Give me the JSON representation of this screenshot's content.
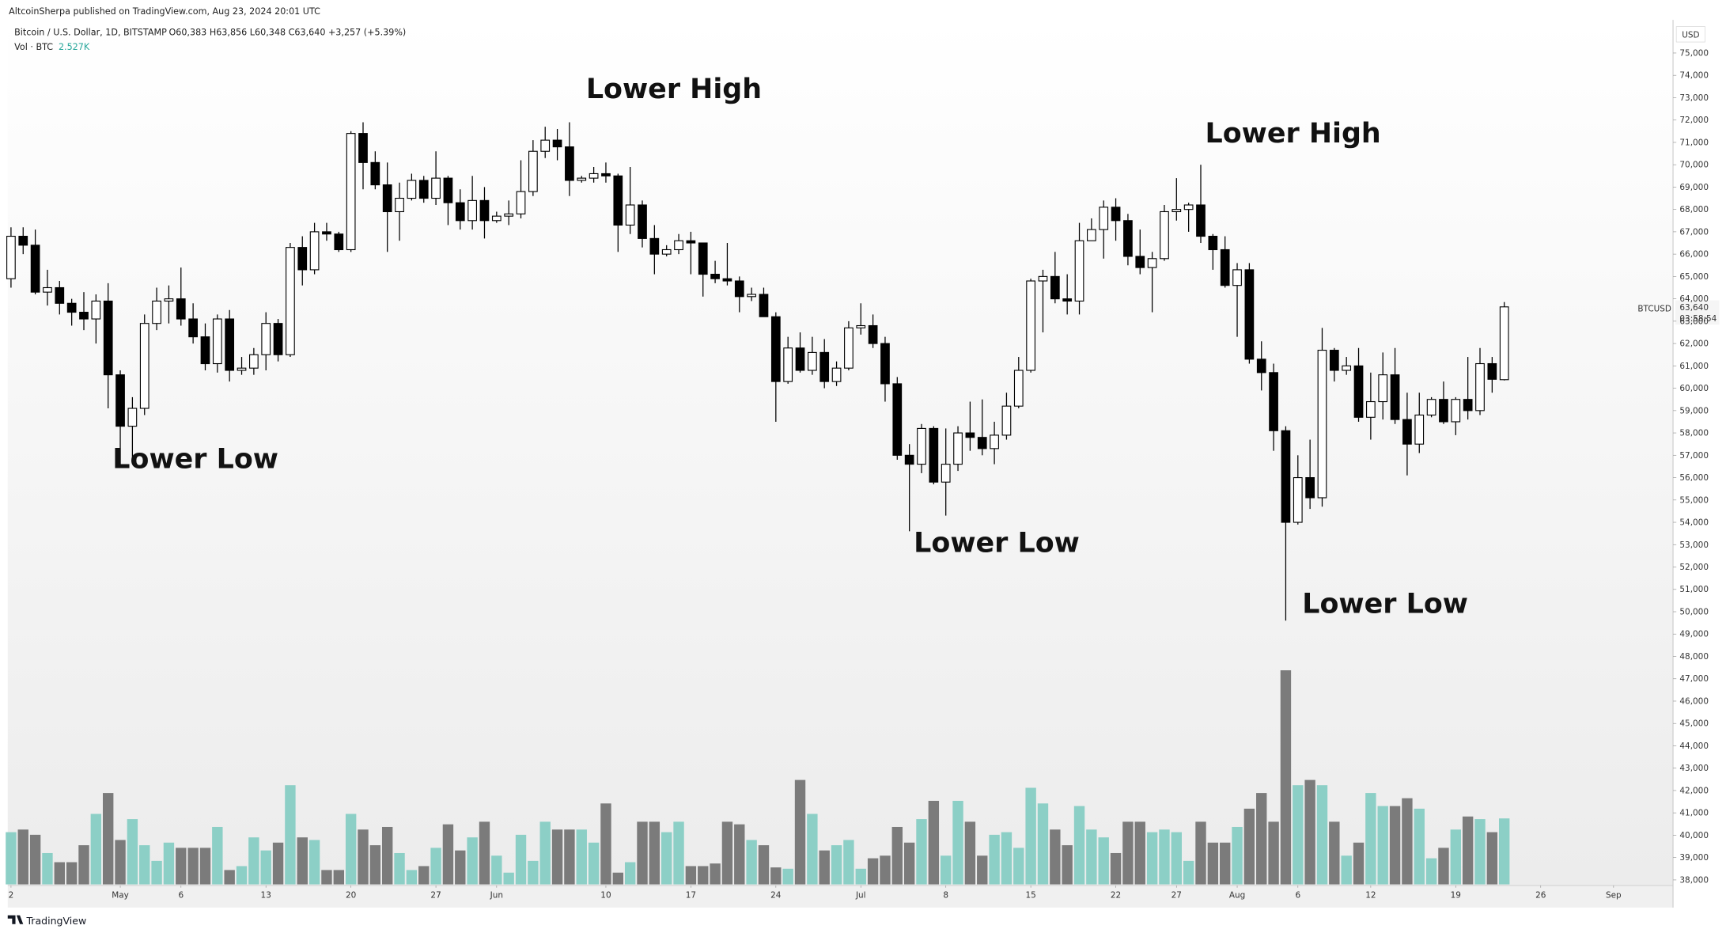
{
  "header": {
    "published": "AltcoinSherpa published on TradingView.com, Aug 23, 2024 20:01 UTC"
  },
  "footer": {
    "brand": "TradingView"
  },
  "chart_data": {
    "type": "candlestick",
    "title": "Bitcoin / U.S. Dollar, 1D, BITSTAMP",
    "readout": "O60,383  H63,856  L60,348  C63,640  +3,257 (+5.39%)",
    "currency": "USD",
    "symbol": "BTCUSD",
    "last_close_label": "63,640",
    "countdown": "03:58:54",
    "up_color": "#ffffff",
    "down_color": "#000000",
    "annotations": [
      "Lower High",
      "Lower High",
      "Lower Low",
      "Lower Low",
      "Lower Low"
    ],
    "open": [
      64900,
      66800,
      66400,
      64300,
      64500,
      63800,
      63400,
      63100,
      63900,
      60600,
      58300,
      59100,
      62900,
      63900,
      64000,
      63100,
      62300,
      61100,
      63100,
      60800,
      60900,
      61500,
      62900,
      61500,
      66300,
      65300,
      67000,
      66900,
      66200,
      71400,
      70100,
      69100,
      67900,
      68500,
      69300,
      68500,
      69400,
      68300,
      67500,
      68400,
      67500,
      67700,
      67800,
      68800,
      70600,
      71100,
      70800,
      69300,
      69400,
      69600,
      69500,
      67300,
      68200,
      66700,
      66000,
      66200,
      66600,
      66500,
      65100,
      64900,
      64800,
      64100,
      64200,
      63200,
      60300,
      61800,
      60800,
      61600,
      60300,
      60900,
      62700,
      62800,
      62000,
      60200,
      57000,
      56600,
      58200,
      55800,
      56600,
      58000,
      57800,
      57300,
      57900,
      59200,
      60800,
      64800,
      65000,
      64000,
      63900,
      66600,
      67100,
      68100,
      67500,
      65900,
      65400,
      65800,
      67900,
      68000,
      68200,
      66800,
      66200,
      64600,
      65300,
      61300,
      60700,
      58100,
      54000,
      56000,
      55100,
      61700,
      60800,
      61000,
      58700,
      59400,
      60600,
      58600,
      57500,
      58800,
      59500,
      58500,
      59500,
      59000,
      61100,
      60383
    ],
    "high": [
      67200,
      67200,
      67100,
      65300,
      64800,
      64000,
      64300,
      64200,
      64700,
      60800,
      59600,
      63300,
      64500,
      64600,
      65400,
      63800,
      62900,
      63300,
      63500,
      61400,
      61800,
      63400,
      63100,
      66500,
      66800,
      67400,
      67400,
      67000,
      71500,
      71900,
      70600,
      70100,
      69200,
      69600,
      69500,
      70600,
      69500,
      68900,
      69500,
      69000,
      67900,
      68400,
      70200,
      71100,
      71700,
      71600,
      71900,
      69500,
      69900,
      70100,
      69600,
      69900,
      68400,
      67300,
      66400,
      66900,
      67000,
      66500,
      65700,
      66500,
      65000,
      64500,
      64500,
      63400,
      62300,
      62500,
      62300,
      62200,
      61200,
      63000,
      63800,
      63300,
      62300,
      60500,
      57500,
      58400,
      58300,
      58200,
      58300,
      59400,
      59500,
      58500,
      59800,
      61400,
      64900,
      65300,
      66100,
      65100,
      67400,
      67600,
      68400,
      68500,
      67800,
      67100,
      66100,
      68200,
      69400,
      68300,
      70000,
      66900,
      66800,
      65600,
      65600,
      62100,
      61100,
      58300,
      57000,
      57700,
      62700,
      61800,
      61400,
      61800,
      60700,
      61600,
      61800,
      59800,
      59800,
      59600,
      60300,
      59600,
      61400,
      61800,
      61400,
      63856
    ],
    "low": [
      64500,
      66000,
      64200,
      63700,
      63300,
      62800,
      62600,
      62000,
      59100,
      56600,
      56900,
      58800,
      62600,
      62900,
      62800,
      62000,
      60800,
      60700,
      60300,
      60600,
      60600,
      60800,
      61200,
      61400,
      64600,
      65100,
      66600,
      66100,
      66100,
      68900,
      68900,
      66100,
      66600,
      68400,
      68300,
      68200,
      67300,
      67100,
      67100,
      66700,
      67400,
      67300,
      67600,
      68600,
      70300,
      70200,
      68600,
      69200,
      69200,
      69200,
      66100,
      66900,
      66300,
      65100,
      65900,
      66000,
      65100,
      64100,
      64700,
      64600,
      63400,
      63900,
      63200,
      58500,
      60200,
      60700,
      60600,
      60000,
      60100,
      60800,
      62400,
      61800,
      59400,
      56800,
      53600,
      56200,
      55700,
      54300,
      56300,
      57200,
      57000,
      56600,
      57700,
      59100,
      60700,
      62500,
      63800,
      63300,
      63300,
      66600,
      65800,
      66600,
      65500,
      65100,
      63400,
      65700,
      67500,
      67000,
      66500,
      65300,
      64500,
      62300,
      61100,
      59900,
      57200,
      49600,
      53900,
      54600,
      54700,
      60300,
      60600,
      58500,
      57700,
      58600,
      58400,
      56100,
      57100,
      58700,
      58400,
      57900,
      58600,
      58800,
      59800,
      60348
    ],
    "close": [
      66800,
      66400,
      64300,
      64500,
      63800,
      63400,
      63100,
      63900,
      60600,
      58300,
      59100,
      62900,
      63900,
      64000,
      63100,
      62300,
      61100,
      63100,
      60800,
      60900,
      61500,
      62900,
      61500,
      66300,
      65300,
      67000,
      66900,
      66200,
      71400,
      70100,
      69100,
      67900,
      68500,
      69300,
      68500,
      69400,
      68300,
      67500,
      68400,
      67500,
      67700,
      67800,
      68800,
      70600,
      71100,
      70800,
      69300,
      69400,
      69600,
      69500,
      67300,
      68200,
      66700,
      66000,
      66200,
      66600,
      66500,
      65100,
      64900,
      64800,
      64100,
      64200,
      63200,
      60300,
      61800,
      60800,
      61600,
      60300,
      60900,
      62700,
      62800,
      62000,
      60200,
      57000,
      56600,
      58200,
      55800,
      56600,
      58000,
      57800,
      57300,
      57900,
      59200,
      60800,
      64800,
      65000,
      64000,
      63900,
      66600,
      67100,
      68100,
      67500,
      65900,
      65400,
      65800,
      67900,
      68000,
      68200,
      66800,
      66200,
      64600,
      65300,
      61300,
      60700,
      58100,
      54000,
      56000,
      55100,
      61700,
      60800,
      61000,
      58700,
      59400,
      60600,
      58600,
      57500,
      58800,
      59500,
      58500,
      59500,
      59000,
      61100,
      60400,
      63640
    ],
    "volume": {
      "name": "Vol · BTC",
      "up_color": "#8ccfc6",
      "down_color": "#7b7b7b",
      "last_value_label": "2.527K",
      "values": [
        2.0,
        2.1,
        1.9,
        1.2,
        0.85,
        0.85,
        1.5,
        2.7,
        3.5,
        1.7,
        2.5,
        1.5,
        0.9,
        1.6,
        1.4,
        1.4,
        1.4,
        2.2,
        0.55,
        0.7,
        1.8,
        1.3,
        1.6,
        3.8,
        1.8,
        1.7,
        0.55,
        0.55,
        2.7,
        2.1,
        1.5,
        2.2,
        1.2,
        0.55,
        0.7,
        1.4,
        2.3,
        1.3,
        1.8,
        2.4,
        1.1,
        0.45,
        1.9,
        0.9,
        2.4,
        2.1,
        2.1,
        2.1,
        1.6,
        3.1,
        0.45,
        0.85,
        2.4,
        2.4,
        2.0,
        2.4,
        0.7,
        0.7,
        0.8,
        2.4,
        2.3,
        1.7,
        1.5,
        0.65,
        0.6,
        4.0,
        2.7,
        1.3,
        1.5,
        1.7,
        0.6,
        1.0,
        1.1,
        2.2,
        1.6,
        2.5,
        3.2,
        1.1,
        3.2,
        2.4,
        1.1,
        1.9,
        2.0,
        1.4,
        3.7,
        3.1,
        2.1,
        1.5,
        3.0,
        2.1,
        1.8,
        1.2,
        2.4,
        2.4,
        2.0,
        2.1,
        2.0,
        0.9,
        2.4,
        1.6,
        1.6,
        2.2,
        2.9,
        3.5,
        2.4,
        8.2,
        3.8,
        4.0,
        3.8,
        2.4,
        1.1,
        1.6,
        3.5,
        3.0,
        3.0,
        3.3,
        2.9,
        1.0,
        1.4,
        2.1,
        2.6,
        2.5,
        2.0,
        2.527
      ]
    },
    "vlim": [
      0,
      8.5
    ],
    "xlim": [
      -0.27,
      136.9
    ],
    "xticks": [
      {
        "value": 0,
        "label": "2"
      },
      {
        "value": 9,
        "label": "May"
      },
      {
        "value": 14,
        "label": "6"
      },
      {
        "value": 21,
        "label": "13"
      },
      {
        "value": 28,
        "label": "20"
      },
      {
        "value": 35,
        "label": "27"
      },
      {
        "value": 40,
        "label": "Jun"
      },
      {
        "value": 49,
        "label": "10"
      },
      {
        "value": 56,
        "label": "17"
      },
      {
        "value": 63,
        "label": "24"
      },
      {
        "value": 70,
        "label": "Jul"
      },
      {
        "value": 77,
        "label": "8"
      },
      {
        "value": 84,
        "label": "15"
      },
      {
        "value": 91,
        "label": "22"
      },
      {
        "value": 96,
        "label": "27"
      },
      {
        "value": 101,
        "label": "Aug"
      },
      {
        "value": 106,
        "label": "6"
      },
      {
        "value": 112,
        "label": "12"
      },
      {
        "value": 119,
        "label": "19"
      },
      {
        "value": 126,
        "label": "26"
      },
      {
        "value": 132,
        "label": "Sep"
      }
    ],
    "ylim": [
      37800,
      76480
    ],
    "yticks": [
      {
        "value": 38000,
        "label": "38,000"
      },
      {
        "value": 39000,
        "label": "39,000"
      },
      {
        "value": 40000,
        "label": "40,000"
      },
      {
        "value": 41000,
        "label": "41,000"
      },
      {
        "value": 42000,
        "label": "42,000"
      },
      {
        "value": 43000,
        "label": "43,000"
      },
      {
        "value": 44000,
        "label": "44,000"
      },
      {
        "value": 45000,
        "label": "45,000"
      },
      {
        "value": 46000,
        "label": "46,000"
      },
      {
        "value": 47000,
        "label": "47,000"
      },
      {
        "value": 48000,
        "label": "48,000"
      },
      {
        "value": 49000,
        "label": "49,000"
      },
      {
        "value": 50000,
        "label": "50,000"
      },
      {
        "value": 51000,
        "label": "51,000"
      },
      {
        "value": 52000,
        "label": "52,000"
      },
      {
        "value": 53000,
        "label": "53,000"
      },
      {
        "value": 54000,
        "label": "54,000"
      },
      {
        "value": 55000,
        "label": "55,000"
      },
      {
        "value": 56000,
        "label": "56,000"
      },
      {
        "value": 57000,
        "label": "57,000"
      },
      {
        "value": 58000,
        "label": "58,000"
      },
      {
        "value": 59000,
        "label": "59,000"
      },
      {
        "value": 60000,
        "label": "60,000"
      },
      {
        "value": 61000,
        "label": "61,000"
      },
      {
        "value": 62000,
        "label": "62,000"
      },
      {
        "value": 63000,
        "label": "63,000"
      },
      {
        "value": 64000,
        "label": "64,000"
      },
      {
        "value": 65000,
        "label": "65,000"
      },
      {
        "value": 66000,
        "label": "66,000"
      },
      {
        "value": 67000,
        "label": "67,000"
      },
      {
        "value": 68000,
        "label": "68,000"
      },
      {
        "value": 69000,
        "label": "69,000"
      },
      {
        "value": 70000,
        "label": "70,000"
      },
      {
        "value": 71000,
        "label": "71,000"
      },
      {
        "value": 72000,
        "label": "72,000"
      },
      {
        "value": 73000,
        "label": "73,000"
      },
      {
        "value": 74000,
        "label": "74,000"
      },
      {
        "value": 75000,
        "label": "75,000"
      }
    ],
    "grid": false
  }
}
